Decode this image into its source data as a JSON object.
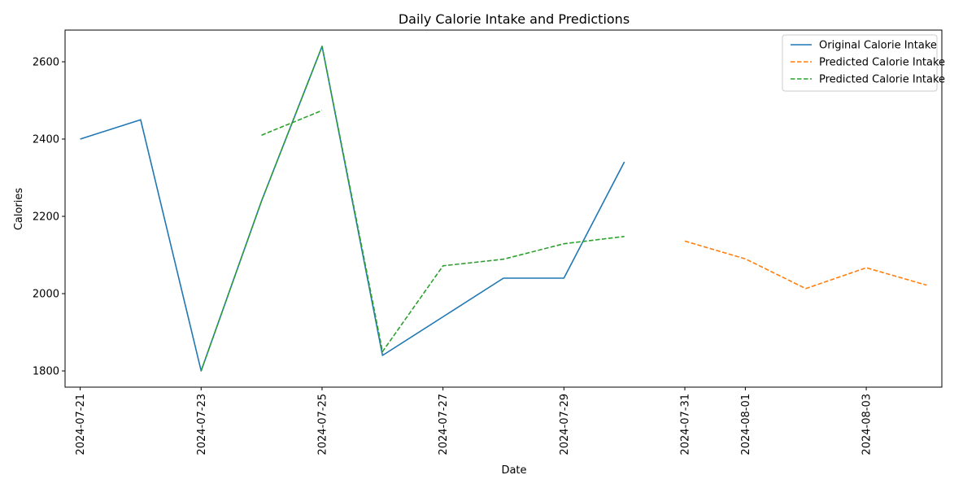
{
  "chart_data": {
    "type": "line",
    "title": "Daily Calorie Intake and Predictions",
    "xlabel": "Date",
    "ylabel": "Calories",
    "x_dates": [
      "2024-07-20T18:00",
      "2024-08-04T06:00"
    ],
    "ylim": [
      1758,
      2682
    ],
    "xticks": [
      "2024-07-21",
      "2024-07-23",
      "2024-07-25",
      "2024-07-27",
      "2024-07-29",
      "2024-07-31",
      "2024-08-01",
      "2024-08-03"
    ],
    "yticks": [
      1800,
      2000,
      2200,
      2400,
      2600
    ],
    "grid": false,
    "legend_position": "top-right",
    "series": [
      {
        "name": "Original Calorie Intake",
        "color": "#1f77b4",
        "style": "solid",
        "x": [
          "2024-07-21",
          "2024-07-22",
          "2024-07-23",
          "2024-07-24",
          "2024-07-25",
          "2024-07-26",
          "2024-07-27",
          "2024-07-28",
          "2024-07-29",
          "2024-07-30"
        ],
        "y": [
          2400,
          2450,
          1800,
          2240,
          2640,
          1840,
          1940,
          2040,
          2040,
          2341
        ]
      },
      {
        "name": "Predicted Calorie Intake",
        "color": "#ff7f0e",
        "style": "dashed",
        "x": [
          "2024-07-31",
          "2024-08-01",
          "2024-08-02",
          "2024-08-03",
          "2024-08-04"
        ],
        "y": [
          2136,
          2090,
          2013,
          2067,
          2022
        ]
      },
      {
        "name": "Predicted Calorie Intake",
        "color": "#2ca02c",
        "style": "dashed",
        "x": [
          "2024-07-23",
          "2024-07-24",
          "2024-07-25",
          "2024-07-26",
          "2024-07-27",
          "2024-07-28",
          "2024-07-29",
          "2024-07-30"
        ],
        "y": [
          1800,
          2240,
          2640,
          1850,
          2072,
          2089,
          2129,
          2148
        ]
      },
      {
        "name": "",
        "color": "#2ca02c",
        "style": "dashed",
        "legend": false,
        "x": [
          "2024-07-24",
          "2024-07-25"
        ],
        "y": [
          2410,
          2474
        ]
      }
    ]
  }
}
